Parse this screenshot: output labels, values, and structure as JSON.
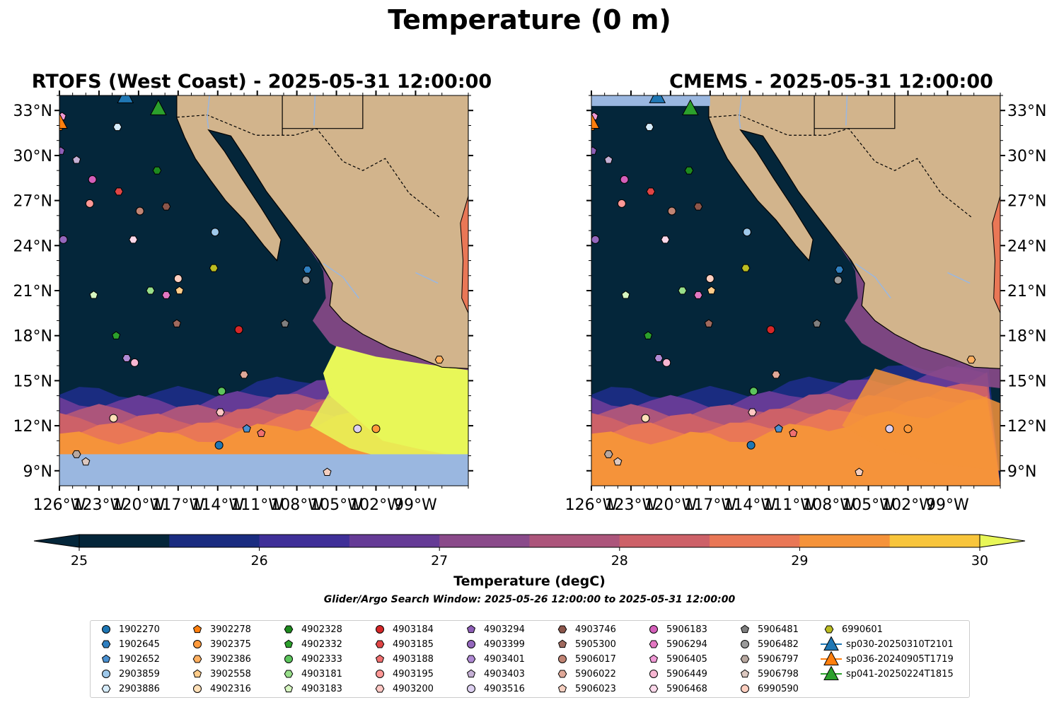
{
  "title": "Temperature (0 m)",
  "panels": [
    {
      "id": "left",
      "title": "RTOFS (West Coast) - 2025-05-31 12:00:00"
    },
    {
      "id": "right",
      "title": "CMEMS - 2025-05-31 12:00:00"
    }
  ],
  "map": {
    "lon_range": [
      -126,
      -95
    ],
    "lat_range": [
      8,
      34
    ],
    "lon_ticks": [
      "126°W",
      "123°W",
      "120°W",
      "117°W",
      "114°W",
      "111°W",
      "108°W",
      "105°W",
      "102°W",
      "99°W"
    ],
    "lat_ticks": [
      "33°N",
      "30°N",
      "27°N",
      "24°N",
      "21°N",
      "18°N",
      "15°N",
      "12°N",
      "9°N"
    ],
    "land_color": "#d2b48c",
    "nodata_color": "#9ab7e0"
  },
  "colorbar": {
    "label": "Temperature (degC)",
    "ticks": [
      "25",
      "26",
      "27",
      "28",
      "29",
      "30"
    ],
    "colors": [
      "#04263a",
      "#1a2c80",
      "#3f2f98",
      "#653b96",
      "#8a4a8a",
      "#ac557b",
      "#cd6168",
      "#e97756",
      "#f5933a",
      "#f8c53c"
    ],
    "under_color": "#04263a",
    "over_color": "#e8f758"
  },
  "search_window": "Glider/Argo Search Window: 2025-05-26 12:00:00 to 2025-05-31 12:00:00",
  "legend": [
    {
      "label": "1902270",
      "marker": "circle",
      "color": "#1f77b4"
    },
    {
      "label": "1902645",
      "marker": "hexagon",
      "color": "#2f7fc0"
    },
    {
      "label": "1902652",
      "marker": "pentagon",
      "color": "#4a90d0"
    },
    {
      "label": "2903859",
      "marker": "circle",
      "color": "#9ec8ea"
    },
    {
      "label": "2903886",
      "marker": "hexagon",
      "color": "#d6ecfa"
    },
    {
      "label": "3902278",
      "marker": "pentagon",
      "color": "#ff7f0e"
    },
    {
      "label": "3902375",
      "marker": "circle",
      "color": "#ff9a3c"
    },
    {
      "label": "3902386",
      "marker": "hexagon",
      "color": "#ffb060"
    },
    {
      "label": "3902558",
      "marker": "pentagon",
      "color": "#ffcc8a"
    },
    {
      "label": "4902316",
      "marker": "circle",
      "color": "#ffe0b8"
    },
    {
      "label": "4902328",
      "marker": "hexagon",
      "color": "#1e8a1e"
    },
    {
      "label": "4902332",
      "marker": "pentagon",
      "color": "#2ca02c"
    },
    {
      "label": "4902333",
      "marker": "circle",
      "color": "#5cc45c"
    },
    {
      "label": "4903181",
      "marker": "hexagon",
      "color": "#98df8a"
    },
    {
      "label": "4903183",
      "marker": "pentagon",
      "color": "#d6f5c0"
    },
    {
      "label": "4903184",
      "marker": "circle",
      "color": "#d62728"
    },
    {
      "label": "4903185",
      "marker": "hexagon",
      "color": "#e04545"
    },
    {
      "label": "4903188",
      "marker": "pentagon",
      "color": "#f07070"
    },
    {
      "label": "4903195",
      "marker": "circle",
      "color": "#ff9896"
    },
    {
      "label": "4903200",
      "marker": "hexagon",
      "color": "#ffc8c4"
    },
    {
      "label": "4903294",
      "marker": "pentagon",
      "color": "#8f5fb8"
    },
    {
      "label": "4903399",
      "marker": "circle",
      "color": "#9467bd"
    },
    {
      "label": "4903401",
      "marker": "hexagon",
      "color": "#b08ad4"
    },
    {
      "label": "4903403",
      "marker": "pentagon",
      "color": "#c5b0d5"
    },
    {
      "label": "4903516",
      "marker": "circle",
      "color": "#ddd0f0"
    },
    {
      "label": "4903746",
      "marker": "hexagon",
      "color": "#8c564b"
    },
    {
      "label": "5905300",
      "marker": "pentagon",
      "color": "#a06a5e"
    },
    {
      "label": "5906017",
      "marker": "circle",
      "color": "#c08474"
    },
    {
      "label": "5906022",
      "marker": "hexagon",
      "color": "#e0a898"
    },
    {
      "label": "5906023",
      "marker": "pentagon",
      "color": "#f5cfc0"
    },
    {
      "label": "5906183",
      "marker": "circle",
      "color": "#d45fba"
    },
    {
      "label": "5906294",
      "marker": "hexagon",
      "color": "#e377c2"
    },
    {
      "label": "5906405",
      "marker": "pentagon",
      "color": "#f09ad6"
    },
    {
      "label": "5906449",
      "marker": "circle",
      "color": "#f7b6d2"
    },
    {
      "label": "5906468",
      "marker": "hexagon",
      "color": "#fcd8ea"
    },
    {
      "label": "5906481",
      "marker": "pentagon",
      "color": "#7f7f7f"
    },
    {
      "label": "5906482",
      "marker": "circle",
      "color": "#9a9a9a"
    },
    {
      "label": "5906797",
      "marker": "hexagon",
      "color": "#b8a8a0"
    },
    {
      "label": "5906798",
      "marker": "pentagon",
      "color": "#dcc8c0"
    },
    {
      "label": "6990590",
      "marker": "circle",
      "color": "#ffcfc0"
    },
    {
      "label": "6990601",
      "marker": "hexagon",
      "color": "#bcbd22"
    },
    {
      "label": "sp030-20250310T2101",
      "marker": "triangle",
      "color": "#1f77b4"
    },
    {
      "label": "sp036-20240905T1719",
      "marker": "triangle",
      "color": "#ff7f0e"
    },
    {
      "label": "sp041-20250224T1815",
      "marker": "triangle",
      "color": "#2ca02c"
    }
  ],
  "observations": [
    {
      "id": "1902270",
      "lon": -113.9,
      "lat": 10.7
    },
    {
      "id": "1902645",
      "lon": -107.2,
      "lat": 22.4
    },
    {
      "id": "1902652",
      "lon": -111.8,
      "lat": 11.8
    },
    {
      "id": "2903859",
      "lon": -114.2,
      "lat": 24.9
    },
    {
      "id": "2903886",
      "lon": -121.6,
      "lat": 31.9
    },
    {
      "id": "3902278",
      "lon": -126.0,
      "lat": 31.9
    },
    {
      "id": "3902375",
      "lon": -102.0,
      "lat": 11.8
    },
    {
      "id": "3902386",
      "lon": -97.2,
      "lat": 16.4
    },
    {
      "id": "3902558",
      "lon": -116.9,
      "lat": 21.0
    },
    {
      "id": "4902316",
      "lon": -121.9,
      "lat": 12.5
    },
    {
      "id": "4902328",
      "lon": -118.6,
      "lat": 29.0
    },
    {
      "id": "4902332",
      "lon": -121.7,
      "lat": 18.0
    },
    {
      "id": "4902333",
      "lon": -113.7,
      "lat": 14.3
    },
    {
      "id": "4903181",
      "lon": -119.1,
      "lat": 21.0
    },
    {
      "id": "4903183",
      "lon": -123.4,
      "lat": 20.7
    },
    {
      "id": "4903184",
      "lon": -112.4,
      "lat": 18.4
    },
    {
      "id": "4903185",
      "lon": -121.5,
      "lat": 27.6
    },
    {
      "id": "4903188",
      "lon": -110.7,
      "lat": 11.5
    },
    {
      "id": "4903195",
      "lon": -123.7,
      "lat": 26.8
    },
    {
      "id": "4903200",
      "lon": -113.8,
      "lat": 12.9
    },
    {
      "id": "4903294",
      "lon": -125.9,
      "lat": 30.3
    },
    {
      "id": "4903399",
      "lon": -125.7,
      "lat": 24.4
    },
    {
      "id": "4903401",
      "lon": -120.9,
      "lat": 16.5
    },
    {
      "id": "4903403",
      "lon": -124.7,
      "lat": 29.7
    },
    {
      "id": "4903516",
      "lon": -103.4,
      "lat": 11.8
    },
    {
      "id": "4903746",
      "lon": -117.9,
      "lat": 26.6
    },
    {
      "id": "5905300",
      "lon": -117.1,
      "lat": 18.8
    },
    {
      "id": "5906017",
      "lon": -119.9,
      "lat": 26.3
    },
    {
      "id": "5906022",
      "lon": -112.0,
      "lat": 15.4
    },
    {
      "id": "5906023",
      "lon": -105.7,
      "lat": 8.9
    },
    {
      "id": "5906183",
      "lon": -123.5,
      "lat": 28.4
    },
    {
      "id": "5906294",
      "lon": -117.9,
      "lat": 20.7
    },
    {
      "id": "5906405",
      "lon": -125.8,
      "lat": 32.6
    },
    {
      "id": "5906449",
      "lon": -120.3,
      "lat": 16.2
    },
    {
      "id": "5906468",
      "lon": -120.4,
      "lat": 24.4
    },
    {
      "id": "5906481",
      "lon": -108.9,
      "lat": 18.8
    },
    {
      "id": "5906482",
      "lon": -107.3,
      "lat": 21.7
    },
    {
      "id": "5906797",
      "lon": -124.7,
      "lat": 10.1
    },
    {
      "id": "5906798",
      "lon": -124.0,
      "lat": 9.6
    },
    {
      "id": "6990590",
      "lon": -117.0,
      "lat": 21.8
    },
    {
      "id": "6990601",
      "lon": -114.3,
      "lat": 22.5
    },
    {
      "id": "sp030-20250310T2101",
      "lon": -121.0,
      "lat": 33.9
    },
    {
      "id": "sp036-20240905T1719",
      "lon": -126.0,
      "lat": 32.2
    },
    {
      "id": "sp041-20250224T1815",
      "lon": -118.5,
      "lat": 33.1
    }
  ]
}
